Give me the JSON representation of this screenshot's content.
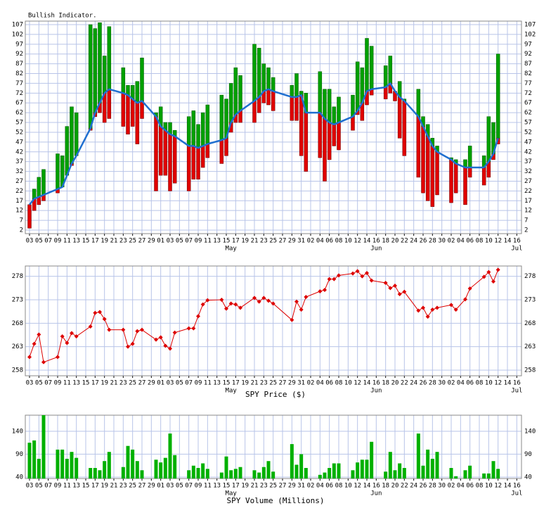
{
  "chart_data": [
    {
      "type": "bar",
      "title": "Bullish Indicator.",
      "xlim": [
        -0.9,
        105
      ],
      "xticks": [
        {
          "value": 0,
          "label": "03"
        },
        {
          "value": 2,
          "label": "05"
        },
        {
          "value": 4,
          "label": "07"
        },
        {
          "value": 6,
          "label": "09"
        },
        {
          "value": 8,
          "label": "11"
        },
        {
          "value": 10,
          "label": "13"
        },
        {
          "value": 12,
          "label": "15"
        },
        {
          "value": 14,
          "label": "17"
        },
        {
          "value": 16,
          "label": "19"
        },
        {
          "value": 18,
          "label": "21"
        },
        {
          "value": 20,
          "label": "23"
        },
        {
          "value": 22,
          "label": "25"
        },
        {
          "value": 24,
          "label": "27"
        },
        {
          "value": 26,
          "label": "29"
        },
        {
          "value": 28,
          "label": "01"
        },
        {
          "value": 30,
          "label": "03"
        },
        {
          "value": 32,
          "label": "05"
        },
        {
          "value": 34,
          "label": "07"
        },
        {
          "value": 36,
          "label": "09"
        },
        {
          "value": 38,
          "label": "11"
        },
        {
          "value": 40,
          "label": "13"
        },
        {
          "value": 42,
          "label": "15"
        },
        {
          "value": 44,
          "label": "17"
        },
        {
          "value": 46,
          "label": "19"
        },
        {
          "value": 48,
          "label": "21"
        },
        {
          "value": 50,
          "label": "23"
        },
        {
          "value": 52,
          "label": "25"
        },
        {
          "value": 54,
          "label": "27"
        },
        {
          "value": 56,
          "label": "29"
        },
        {
          "value": 58,
          "label": "31"
        },
        {
          "value": 60,
          "label": "02"
        },
        {
          "value": 62,
          "label": "04"
        },
        {
          "value": 64,
          "label": "06"
        },
        {
          "value": 66,
          "label": "08"
        },
        {
          "value": 68,
          "label": "10"
        },
        {
          "value": 70,
          "label": "12"
        },
        {
          "value": 72,
          "label": "14"
        },
        {
          "value": 74,
          "label": "16"
        },
        {
          "value": 76,
          "label": "18"
        },
        {
          "value": 78,
          "label": "20"
        },
        {
          "value": 80,
          "label": "22"
        },
        {
          "value": 82,
          "label": "24"
        },
        {
          "value": 84,
          "label": "26"
        },
        {
          "value": 86,
          "label": "28"
        },
        {
          "value": 88,
          "label": "30"
        },
        {
          "value": 90,
          "label": "02"
        },
        {
          "value": 92,
          "label": "04"
        },
        {
          "value": 94,
          "label": "06"
        },
        {
          "value": 96,
          "label": "08"
        },
        {
          "value": 98,
          "label": "10"
        },
        {
          "value": 100,
          "label": "12"
        },
        {
          "value": 102,
          "label": "14"
        },
        {
          "value": 104,
          "label": "16"
        }
      ],
      "month_ticks": [
        {
          "value": 43,
          "label": "May"
        },
        {
          "value": 74,
          "label": "Jun"
        },
        {
          "value": 104,
          "label": "Jul"
        }
      ],
      "x": [
        0,
        1,
        2,
        3,
        6,
        7,
        8,
        9,
        10,
        13,
        14,
        15,
        16,
        17,
        20,
        21,
        22,
        23,
        24,
        27,
        28,
        29,
        30,
        31,
        34,
        35,
        36,
        37,
        38,
        41,
        42,
        43,
        44,
        45,
        48,
        49,
        50,
        51,
        52,
        56,
        57,
        58,
        59,
        62,
        63,
        64,
        65,
        66,
        69,
        70,
        71,
        72,
        73,
        76,
        77,
        78,
        79,
        80,
        83,
        84,
        85,
        86,
        87,
        90,
        91,
        93,
        94,
        97,
        98,
        99,
        100
      ],
      "values": [
        15,
        18,
        19,
        20,
        23,
        24,
        30,
        36,
        40,
        54,
        62,
        67,
        72,
        74,
        72,
        71,
        69,
        67,
        68,
        60,
        55,
        53,
        51,
        50,
        45,
        45,
        44,
        45,
        46,
        48,
        49,
        57,
        61,
        63,
        68,
        70,
        73,
        74,
        73,
        70,
        70,
        71,
        62,
        62,
        59,
        57,
        56,
        57,
        60,
        63,
        67,
        73,
        74,
        75,
        77,
        73,
        70,
        68,
        60,
        55,
        50,
        45,
        42,
        38,
        36,
        34,
        34,
        34,
        37,
        41,
        49
      ],
      "low": [
        3,
        12,
        15,
        17,
        21,
        24,
        30,
        35,
        40,
        53,
        60,
        62,
        57,
        59,
        55,
        51,
        55,
        46,
        59,
        22,
        30,
        30,
        22,
        26,
        22,
        28,
        28,
        34,
        39,
        36,
        40,
        52,
        57,
        57,
        57,
        62,
        67,
        66,
        63,
        58,
        58,
        40,
        32,
        39,
        27,
        38,
        45,
        43,
        53,
        61,
        58,
        66,
        71,
        69,
        72,
        68,
        49,
        40,
        29,
        21,
        17,
        14,
        20,
        16,
        21,
        15,
        29,
        25,
        29,
        38,
        46
      ],
      "high": [
        15,
        23,
        29,
        33,
        41,
        40,
        55,
        65,
        62,
        107,
        105,
        108,
        91,
        106,
        85,
        76,
        76,
        78,
        90,
        62,
        65,
        57,
        57,
        53,
        60,
        63,
        56,
        62,
        66,
        71,
        69,
        77,
        85,
        81,
        97,
        95,
        87,
        85,
        80,
        76,
        82,
        73,
        72,
        83,
        74,
        74,
        65,
        70,
        71,
        88,
        85,
        100,
        96,
        86,
        91,
        73,
        78,
        69,
        74,
        60,
        56,
        49,
        45,
        39,
        38,
        38,
        45,
        40,
        60,
        57,
        92
      ],
      "color_high": "#00a000",
      "color_low": "#e00000",
      "line_color": "#1f6fd0",
      "ylim": [
        0.2,
        108.8
      ],
      "yticks": [
        2,
        7,
        12,
        17,
        22,
        27,
        32,
        37,
        42,
        47,
        52,
        57,
        62,
        67,
        72,
        77,
        82,
        87,
        92,
        97,
        102,
        107
      ],
      "grid": true
    },
    {
      "type": "line",
      "xlabel": "SPY Price ($)",
      "color": "#dd0000",
      "values": [
        260.8,
        263.6,
        265.6,
        259.7,
        260.8,
        265.2,
        263.8,
        265.9,
        265.2,
        267.3,
        270.2,
        270.4,
        268.9,
        266.6,
        266.6,
        263.0,
        263.6,
        266.3,
        266.6,
        264.5,
        265.0,
        263.2,
        262.6,
        266.0,
        266.9,
        266.9,
        269.5,
        272.0,
        272.9,
        273.0,
        271.1,
        272.2,
        272.0,
        271.3,
        273.4,
        272.6,
        273.4,
        272.8,
        272.2,
        268.7,
        272.6,
        270.9,
        273.6,
        274.8,
        275.1,
        277.4,
        277.4,
        278.2,
        278.6,
        279.1,
        278.0,
        278.7,
        277.1,
        276.6,
        275.5,
        276.0,
        274.2,
        274.7,
        270.7,
        271.3,
        269.4,
        270.9,
        271.3,
        271.9,
        270.9,
        273.1,
        275.4,
        277.9,
        278.9,
        276.9,
        279.4
      ],
      "ylim": [
        256.8,
        280.2
      ],
      "yticks": [
        258,
        263,
        268,
        273,
        278
      ],
      "grid": true
    },
    {
      "type": "bar",
      "xlabel": "SPY Volume (Millions)",
      "color": "#00b000",
      "values": [
        115,
        120,
        80,
        175,
        100,
        100,
        80,
        95,
        82,
        60,
        60,
        55,
        75,
        95,
        62,
        108,
        100,
        75,
        55,
        78,
        72,
        82,
        135,
        88,
        55,
        65,
        60,
        70,
        58,
        50,
        85,
        55,
        58,
        62,
        55,
        50,
        62,
        75,
        52,
        112,
        67,
        90,
        60,
        45,
        50,
        60,
        70,
        70,
        55,
        72,
        78,
        78,
        117,
        52,
        95,
        55,
        70,
        60,
        135,
        65,
        100,
        80,
        95,
        60,
        42,
        55,
        65,
        48,
        48,
        75,
        58
      ],
      "ylim": [
        37,
        175
      ],
      "yticks": [
        40,
        90,
        140
      ],
      "grid": true
    }
  ]
}
